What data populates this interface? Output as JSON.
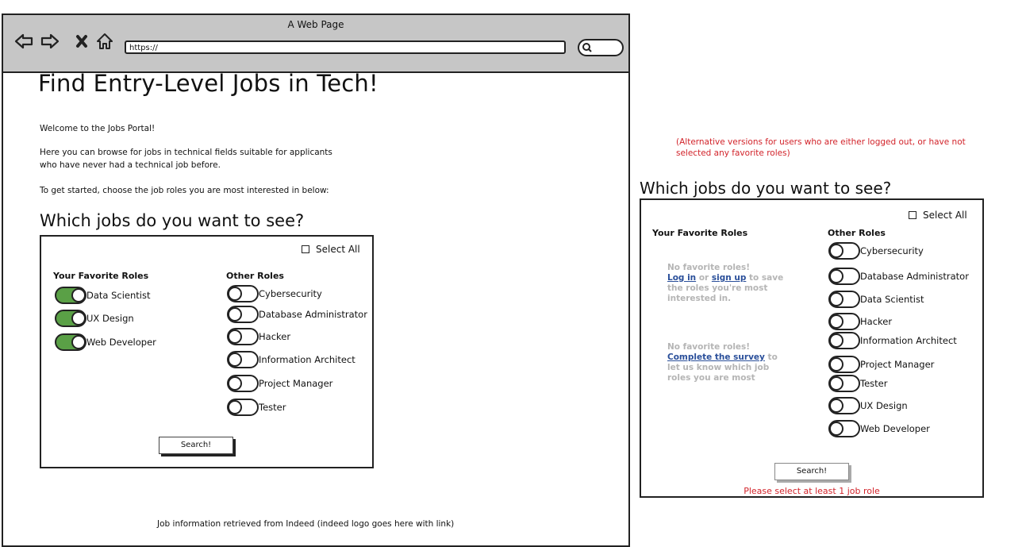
{
  "browser": {
    "window_title": "A Web Page",
    "url": "https://",
    "icons": [
      "back-arrow-icon",
      "forward-arrow-icon",
      "close-icon",
      "home-icon",
      "search-icon"
    ]
  },
  "main": {
    "title": "Find Entry-Level Jobs in Tech!",
    "welcome": "Welcome to the Jobs Portal!",
    "intro_line1": "Here you can browse for jobs in technical fields suitable for applicants",
    "intro_line2": "who have never had a technical job before.",
    "instruction": "To get started, choose the job roles you are most interested in below:",
    "section_title": "Which jobs do you want to see?",
    "select_all": "Select All",
    "favorites_header": "Your Favorite Roles",
    "others_header": "Other Roles",
    "favorites": [
      {
        "label": "Data Scientist",
        "on": true
      },
      {
        "label": "UX Design",
        "on": true
      },
      {
        "label": "Web Developer",
        "on": true
      }
    ],
    "others": [
      {
        "label": "Cybersecurity",
        "on": false
      },
      {
        "label": "Database Administrator",
        "on": false
      },
      {
        "label": "Hacker",
        "on": false
      },
      {
        "label": "Information Architect",
        "on": false
      },
      {
        "label": "Project Manager",
        "on": false
      },
      {
        "label": "Tester",
        "on": false
      }
    ],
    "search_label": "Search!",
    "footer": "Job information retrieved from Indeed (indeed logo goes here with link)"
  },
  "alt": {
    "note_line1": "(Alternative versions for users who are either logged out, or have not",
    "note_line2": "selected any favorite roles)",
    "section_title": "Which jobs do you want to see?",
    "select_all": "Select All",
    "favorites_header": "Your Favorite Roles",
    "others_header": "Other Roles",
    "msg1": {
      "heading": "No favorite roles!",
      "login": "Log in",
      "or": "or",
      "signup": "sign up",
      "tail1": "to save",
      "line3": "the roles you're most",
      "line4": "interested in."
    },
    "msg2": {
      "heading": "No favorite roles!",
      "survey": "Complete the survey",
      "tail1": "to",
      "line3": "let us know which job",
      "line4": "roles you are most"
    },
    "roles": [
      {
        "label": "Cybersecurity",
        "on": false
      },
      {
        "label": "Database Administrator",
        "on": false
      },
      {
        "label": "Data Scientist",
        "on": false
      },
      {
        "label": "Hacker",
        "on": false
      },
      {
        "label": "Information Architect",
        "on": false
      },
      {
        "label": "Project Manager",
        "on": false
      },
      {
        "label": "Tester",
        "on": false
      },
      {
        "label": "UX Design",
        "on": false
      },
      {
        "label": "Web Developer",
        "on": false
      }
    ],
    "search_label": "Search!",
    "error": "Please select at least 1 job role"
  },
  "colors": {
    "toggle_on": "#5aa046",
    "error_red": "#d2232a",
    "link_blue": "#2a4f9a",
    "chrome_gray": "#c6c6c6"
  }
}
